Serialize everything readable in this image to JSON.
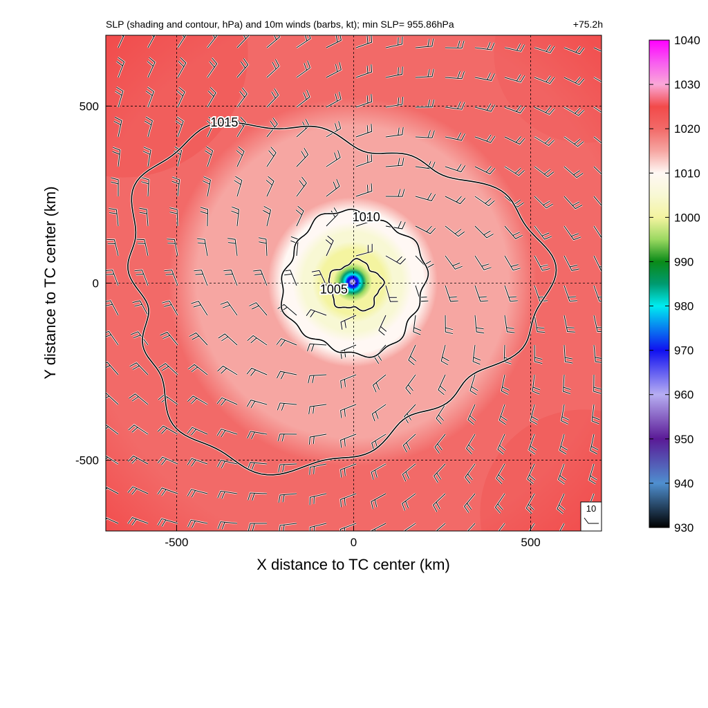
{
  "chart_data": {
    "type": "heatmap",
    "title": "SLP (shading and contour, hPa) and 10m winds (barbs, kt); min SLP= 955.86hPa",
    "time_label": "+75.2h",
    "xlabel": "X distance to TC center (km)",
    "ylabel": "Y distance to TC center (km)",
    "xlim": [
      -700,
      700
    ],
    "ylim": [
      -700,
      700
    ],
    "x_ticks": [
      -500,
      0,
      500
    ],
    "y_ticks": [
      -500,
      0,
      500
    ],
    "grid": true,
    "min_slp_hpa": 955.86,
    "colorbar": {
      "range": [
        930,
        1040
      ],
      "ticks": [
        930,
        940,
        950,
        960,
        970,
        980,
        990,
        1000,
        1010,
        1020,
        1030,
        1040
      ],
      "stops": [
        {
          "v": 930,
          "color": "#000000"
        },
        {
          "v": 940,
          "color": "#4f8fcf"
        },
        {
          "v": 950,
          "color": "#5a1a96"
        },
        {
          "v": 960,
          "color": "#b7aef2"
        },
        {
          "v": 970,
          "color": "#1010f0"
        },
        {
          "v": 980,
          "color": "#00ecf0"
        },
        {
          "v": 985,
          "color": "#009a70"
        },
        {
          "v": 990,
          "color": "#0a8a18"
        },
        {
          "v": 995,
          "color": "#9ad860"
        },
        {
          "v": 1000,
          "color": "#f4f4a0"
        },
        {
          "v": 1005,
          "color": "#f8f8d4"
        },
        {
          "v": 1010,
          "color": "#fff8f4"
        },
        {
          "v": 1015,
          "color": "#f6a6a2"
        },
        {
          "v": 1020,
          "color": "#f26a68"
        },
        {
          "v": 1025,
          "color": "#f24a4a"
        },
        {
          "v": 1030,
          "color": "#faa8d8"
        },
        {
          "v": 1035,
          "color": "#f85cf0"
        },
        {
          "v": 1040,
          "color": "#ff00ff"
        }
      ]
    },
    "contours": [
      {
        "level": 1005,
        "label": "1005"
      },
      {
        "level": 1010,
        "label": "1010"
      },
      {
        "level": 1015,
        "label": "1015"
      }
    ],
    "wind_key": {
      "label": "10",
      "speed_kt": 10
    }
  }
}
